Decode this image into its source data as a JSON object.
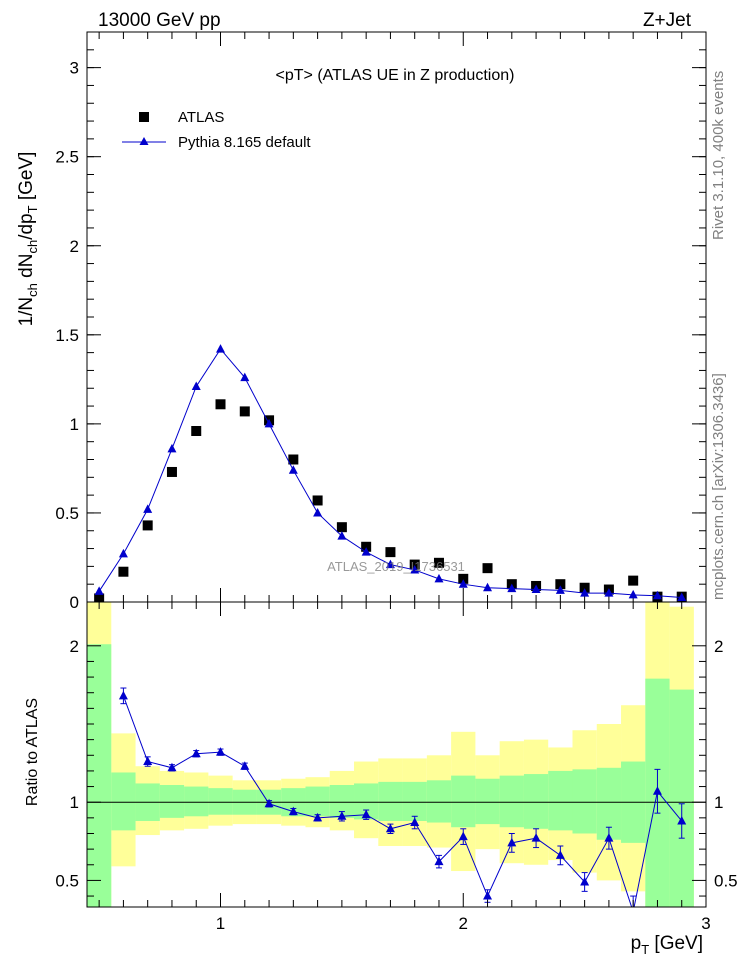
{
  "header": {
    "left": "13000 GeV pp",
    "right": "Z+Jet"
  },
  "side_labels": {
    "rivet": "Rivet 3.1.10,  400k events",
    "mcplots": "mcplots.cern.ch [arXiv:1306.3436]"
  },
  "watermark": "ATLAS_2019_I1736531",
  "chart_data": [
    {
      "type": "scatter",
      "title": "<pT>  (ATLAS UE in Z production)",
      "ylabel": "1/N_ch dN_ch/dp_T [GeV]",
      "xlim": [
        0.45,
        3.0
      ],
      "ylim": [
        0,
        3.2
      ],
      "yticks": [
        0,
        0.5,
        1,
        1.5,
        2,
        2.5,
        3
      ],
      "ytick_labels": [
        "0",
        "0.5",
        "1",
        "1.5",
        "2",
        "2.5",
        "3"
      ],
      "legend_position": "top-left",
      "legend": [
        "ATLAS",
        "Pythia 8.165 default"
      ],
      "x": [
        0.5,
        0.6,
        0.7,
        0.8,
        0.9,
        1.0,
        1.1,
        1.2,
        1.3,
        1.4,
        1.5,
        1.6,
        1.7,
        1.8,
        1.9,
        2.0,
        2.1,
        2.2,
        2.3,
        2.4,
        2.5,
        2.6,
        2.7,
        2.8,
        2.9
      ],
      "series": [
        {
          "name": "ATLAS",
          "marker": "square",
          "color": "#000000",
          "values": [
            0.02,
            0.17,
            0.43,
            0.73,
            0.96,
            1.11,
            1.07,
            1.02,
            0.8,
            0.57,
            0.42,
            0.31,
            0.28,
            0.21,
            0.22,
            0.13,
            0.19,
            0.1,
            0.09,
            0.1,
            0.08,
            0.07,
            0.12,
            0.03,
            0.03
          ]
        },
        {
          "name": "Pythia 8.165 default",
          "marker": "triangle",
          "color": "#0000cc",
          "values": [
            0.06,
            0.27,
            0.52,
            0.86,
            1.21,
            1.42,
            1.26,
            1.0,
            0.74,
            0.5,
            0.37,
            0.28,
            0.21,
            0.18,
            0.13,
            0.1,
            0.08,
            0.075,
            0.07,
            0.065,
            0.05,
            0.05,
            0.04,
            0.035,
            0.025
          ]
        }
      ]
    },
    {
      "type": "scatter",
      "ylabel": "Ratio to ATLAS",
      "xlabel": "p_T [GeV]",
      "xlim": [
        0.45,
        3.0
      ],
      "ylim": [
        0.33,
        2.28
      ],
      "xticks": [
        1,
        2,
        3
      ],
      "xtick_labels": [
        "1",
        "2",
        "3"
      ],
      "yticks": [
        0.5,
        1,
        2
      ],
      "ytick_labels": [
        "0.5",
        "1",
        "2"
      ],
      "band_edges": [
        0.45,
        0.55,
        0.65,
        0.75,
        0.85,
        0.95,
        1.05,
        1.15,
        1.25,
        1.35,
        1.45,
        1.55,
        1.65,
        1.75,
        1.85,
        1.95,
        2.05,
        2.15,
        2.25,
        2.35,
        2.45,
        2.55,
        2.65,
        2.75,
        2.85,
        2.95
      ],
      "green_band": {
        "color": "#99ff99",
        "low": [
          0.3,
          0.82,
          0.88,
          0.9,
          0.91,
          0.92,
          0.92,
          0.92,
          0.91,
          0.91,
          0.9,
          0.89,
          0.88,
          0.88,
          0.87,
          0.84,
          0.86,
          0.84,
          0.83,
          0.82,
          0.8,
          0.76,
          0.74,
          0.3,
          0.3
        ],
        "high": [
          2.01,
          1.19,
          1.12,
          1.11,
          1.1,
          1.09,
          1.08,
          1.08,
          1.09,
          1.1,
          1.11,
          1.12,
          1.13,
          1.13,
          1.14,
          1.17,
          1.15,
          1.17,
          1.18,
          1.2,
          1.21,
          1.22,
          1.26,
          1.79,
          1.72
        ]
      },
      "yellow_band": {
        "color": "#ffff99",
        "low": [
          0.3,
          0.59,
          0.79,
          0.82,
          0.83,
          0.85,
          0.86,
          0.86,
          0.85,
          0.84,
          0.82,
          0.77,
          0.72,
          0.72,
          0.71,
          0.56,
          0.7,
          0.61,
          0.6,
          0.63,
          0.55,
          0.5,
          0.43,
          0.3,
          0.3
        ],
        "high": [
          2.41,
          1.44,
          1.23,
          1.2,
          1.19,
          1.17,
          1.14,
          1.14,
          1.15,
          1.16,
          1.2,
          1.26,
          1.28,
          1.28,
          1.3,
          1.45,
          1.3,
          1.39,
          1.4,
          1.35,
          1.46,
          1.5,
          1.62,
          2.41,
          2.25
        ]
      },
      "reference_line": 1,
      "x": [
        0.6,
        0.7,
        0.8,
        0.9,
        1.0,
        1.1,
        1.2,
        1.3,
        1.4,
        1.5,
        1.6,
        1.7,
        1.8,
        1.9,
        2.0,
        2.1,
        2.2,
        2.3,
        2.4,
        2.5,
        2.6,
        2.7,
        2.8,
        2.9
      ],
      "series": [
        {
          "name": "Pythia 8.165 default",
          "color": "#0000cc",
          "values": [
            1.68,
            1.26,
            1.22,
            1.31,
            1.32,
            1.23,
            0.99,
            0.94,
            0.9,
            0.91,
            0.92,
            0.83,
            0.87,
            0.62,
            0.78,
            0.4,
            0.74,
            0.77,
            0.66,
            0.49,
            0.77,
            0.3,
            1.07,
            0.88
          ],
          "errors": [
            0.05,
            0.03,
            0.02,
            0.02,
            0.02,
            0.02,
            0.02,
            0.02,
            0.02,
            0.03,
            0.03,
            0.03,
            0.04,
            0.04,
            0.05,
            0.04,
            0.06,
            0.06,
            0.06,
            0.06,
            0.07,
            0.1,
            0.14,
            0.11
          ]
        }
      ]
    }
  ]
}
